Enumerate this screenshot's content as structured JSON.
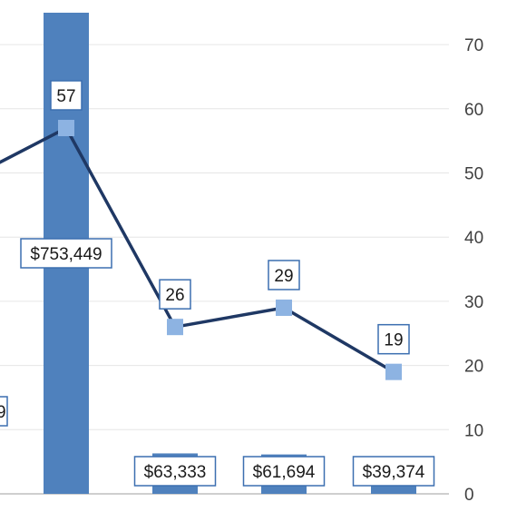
{
  "chart_data": {
    "type": "bar+line",
    "bar_series": {
      "categories": [
        "",
        "",
        "",
        "",
        ""
      ],
      "values": [
        null,
        753449,
        63333,
        61694,
        39374
      ],
      "labels": [
        "",
        "$753,449",
        "$63,333",
        "$61,694",
        "$39,374"
      ],
      "color": "#4f81bd"
    },
    "line_series": {
      "values": [
        48,
        57,
        26,
        29,
        19
      ],
      "labels": [
        "",
        "57",
        "26",
        "29",
        "19"
      ],
      "color": "#1f3864",
      "marker_color": "#8db3e2"
    },
    "partial_label": "9",
    "y_right_axis": {
      "ticks": [
        "0",
        "10",
        "20",
        "30",
        "40",
        "50",
        "60",
        "70"
      ],
      "range": [
        0,
        70
      ]
    },
    "grid": true
  }
}
